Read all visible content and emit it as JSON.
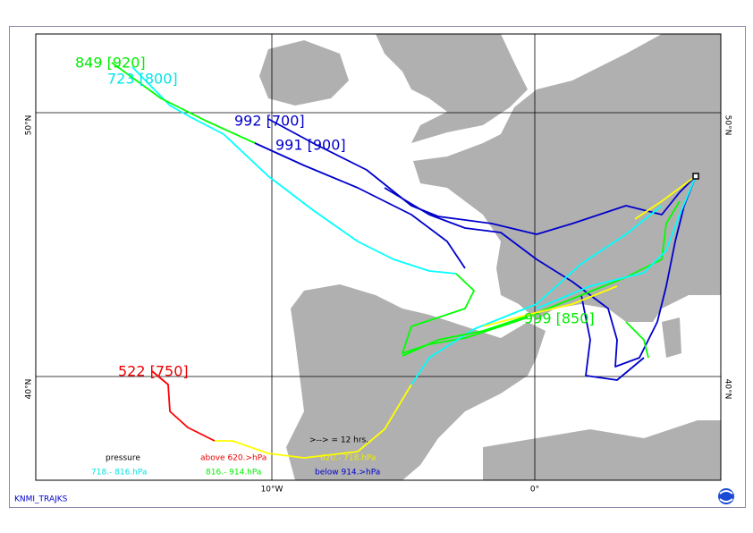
{
  "map": {
    "grid_labels": {
      "lat": [
        "50°N",
        "40°N"
      ],
      "lon": [
        "10°W",
        "0°"
      ]
    },
    "trajectory_labels": [
      "849 [920]",
      "723 [800]",
      "992 [700]",
      "991 [900]",
      "999 [850]",
      "522 [750]"
    ],
    "legend": {
      "title": "pressure",
      "arrow_note": ">--> = 12 hrs.",
      "classes": [
        "above  620.>hPa",
        "620.-  718.hPa",
        "718.-  816.hPa",
        "816.-  914.hPa",
        "below  914.>hPa"
      ]
    },
    "footer": "KNMI_TRAJKS"
  }
}
